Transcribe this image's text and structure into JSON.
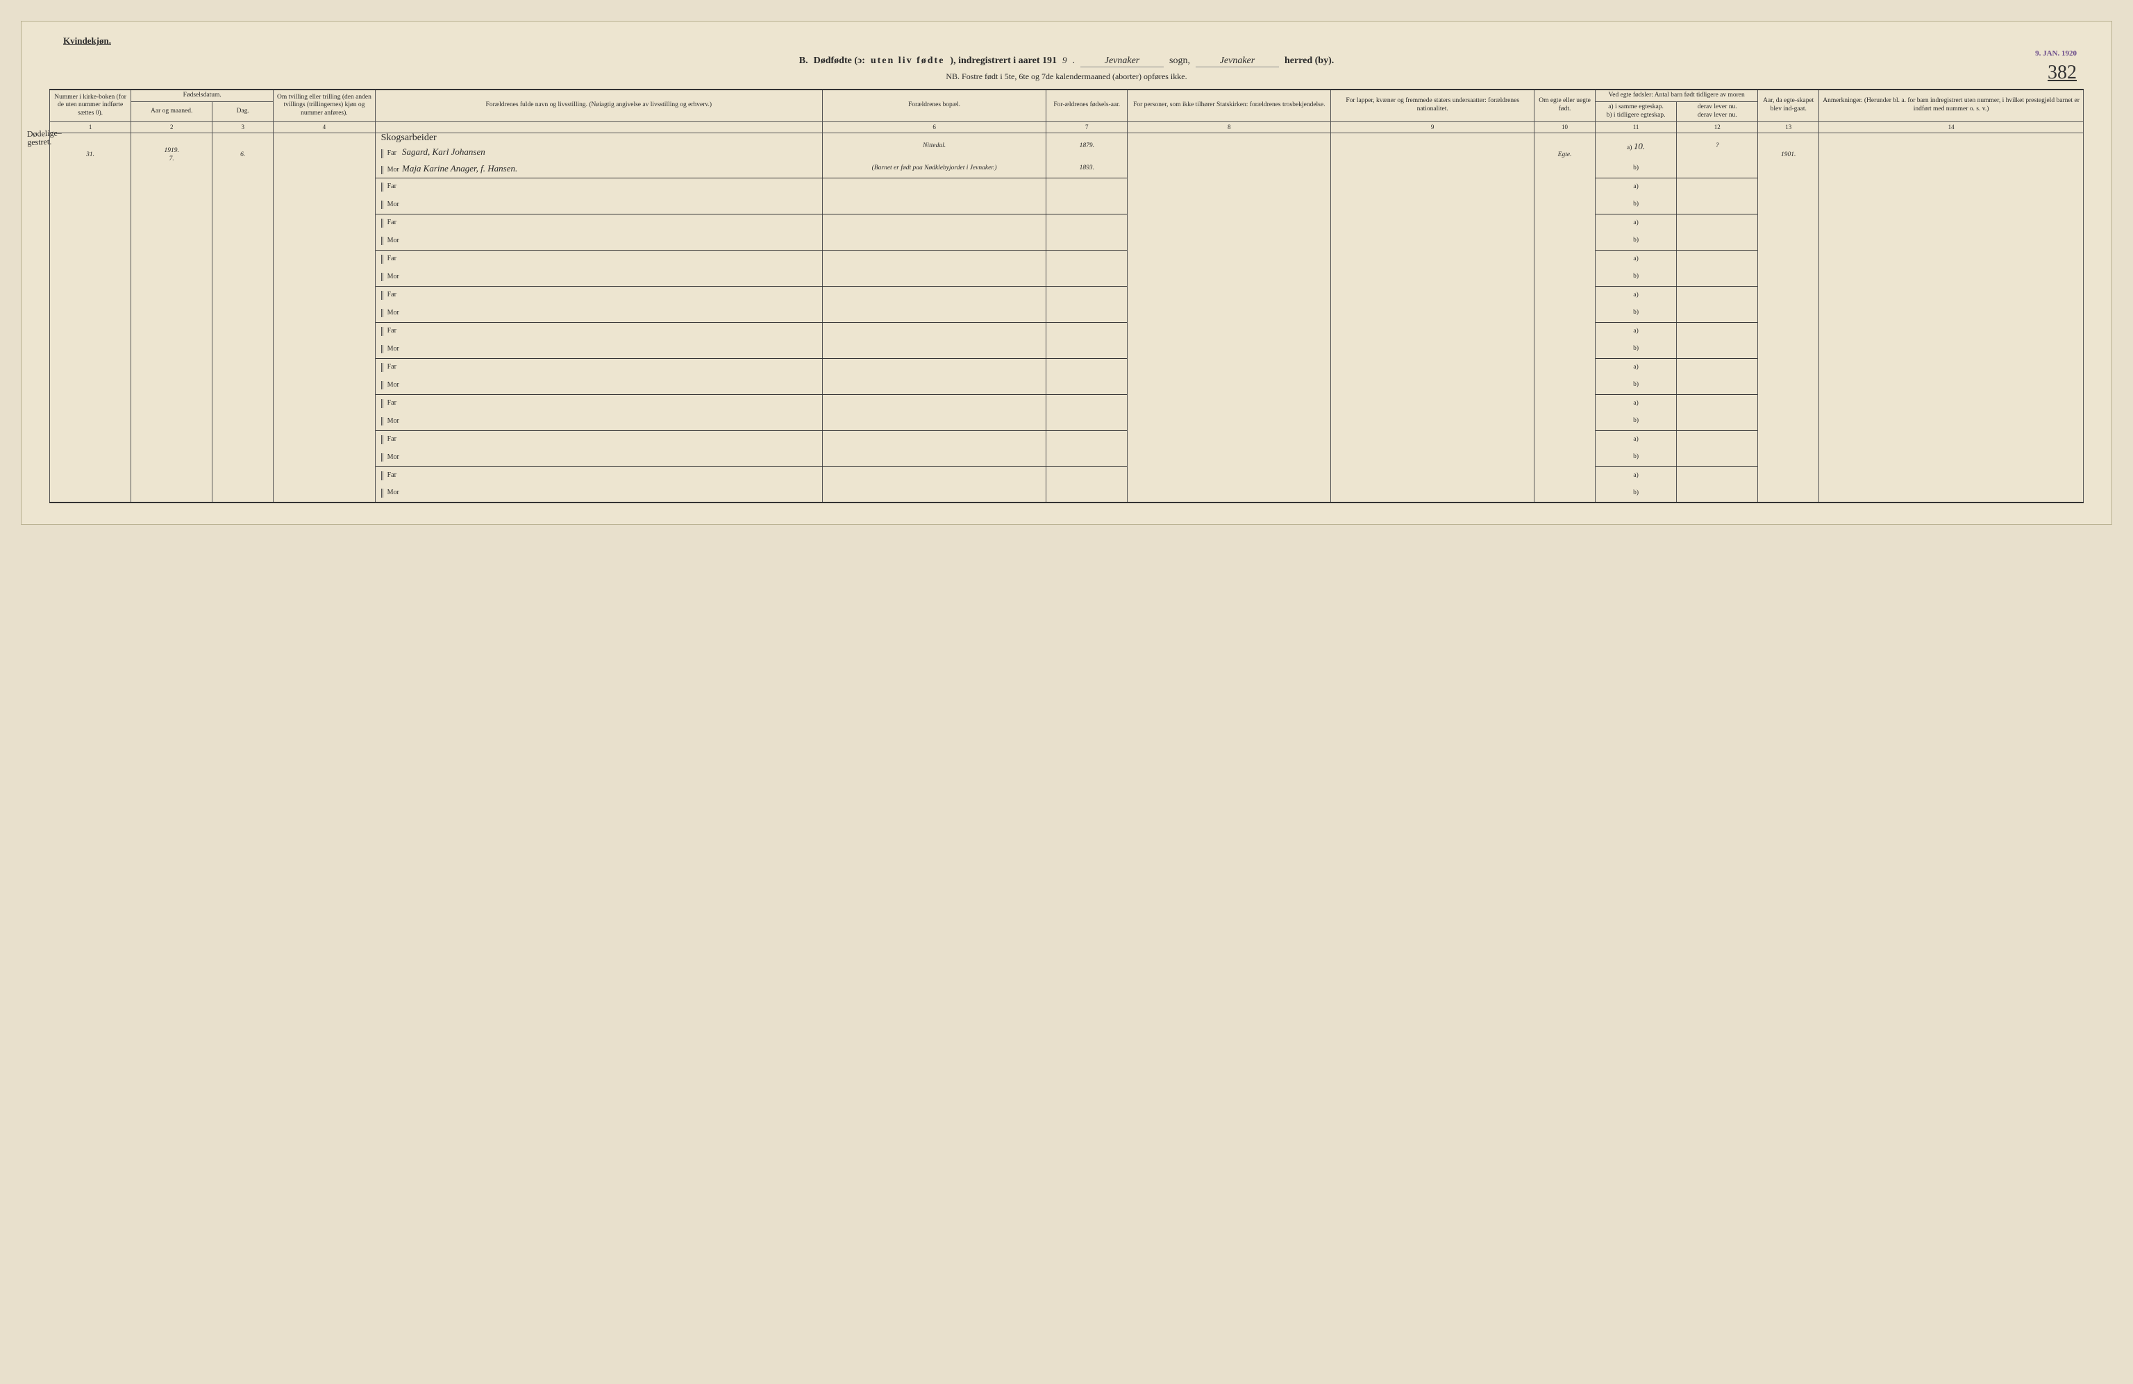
{
  "header": {
    "gender": "Kvindekjøn.",
    "section_letter": "B.",
    "title_main": "Dødfødte (ɔ:",
    "title_spaced": "uten liv fødte",
    "title_tail": "), indregistrert i aaret 191",
    "year_suffix": "9",
    "sogn_handwriting": "Jevnaker",
    "sogn_label": "sogn,",
    "herred_handwriting": "Jevnaker",
    "herred_label": "herred (by).",
    "subheader": "NB.  Fostre født i 5te, 6te og 7de kalendermaaned (aborter) opføres ikke."
  },
  "stamp": "9. JAN. 1920",
  "page_number": "382",
  "margin_note": "Dødelige–\ngestret.",
  "columns": {
    "c1": "Nummer i kirke-boken (for de uten nummer indførte sættes 0).",
    "c2_group": "Fødselsdatum.",
    "c2a": "Aar og maaned.",
    "c2b": "Dag.",
    "c4": "Om tvilling eller trilling (den anden tvillings (trillingernes) kjøn og nummer anføres).",
    "c5": "Forældrenes fulde navn og livsstilling.\n(Nøiagtig angivelse av livsstilling og erhverv.)",
    "c6": "Forældrenes bopæl.",
    "c7": "For-ældrenes fødsels-aar.",
    "c8": "For personer, som ikke tilhører Statskirken: forældrenes trosbekjendelse.",
    "c9": "For lapper, kvæner og fremmede staters undersaatter: forældrenes nationalitet.",
    "c10": "Om egte eller uegte født.",
    "c11_group": "Ved egte fødsler:\nAntal barn født tidligere av moren",
    "c11a": "a) i samme egteskap.",
    "c11b": "b) i tidligere egteskap.",
    "c12a": "derav lever nu.",
    "c12b": "derav lever nu.",
    "c13": "Aar, da egte-skapet blev ind-gaat.",
    "c14": "Anmerkninger.\n(Herunder bl. a. for barn indregistrert uten nummer, i hvilket prestegjeld barnet er indført med nummer o. s. v.)",
    "nums": [
      "1",
      "2",
      "3",
      "4",
      "",
      "6",
      "7",
      "8",
      "9",
      "10",
      "11",
      "12",
      "13",
      "14"
    ]
  },
  "row1": {
    "num": "31.",
    "year": "1919.",
    "month": "7.",
    "day": "6.",
    "occupation": "Skogsarbeider",
    "far_label": "Far",
    "far_name": "Sagard, Karl Johansen",
    "far_bopael": "Nittedal.",
    "far_fodselsaar": "1879.",
    "mor_label": "Mor",
    "mor_name": "Maja Karine Anager, f. Hansen.",
    "mor_bopael": "(Barnet er født paa Nødklebyjordet i Jevnaker.)",
    "mor_fodselsaar": "1893.",
    "egte": "Egte.",
    "c11a_val": "10.",
    "c12_val": "?",
    "c13_val": "1901."
  },
  "empty_rows": 9,
  "labels": {
    "far": "Far",
    "mor": "Mor",
    "a": "a)",
    "b": "b)"
  }
}
